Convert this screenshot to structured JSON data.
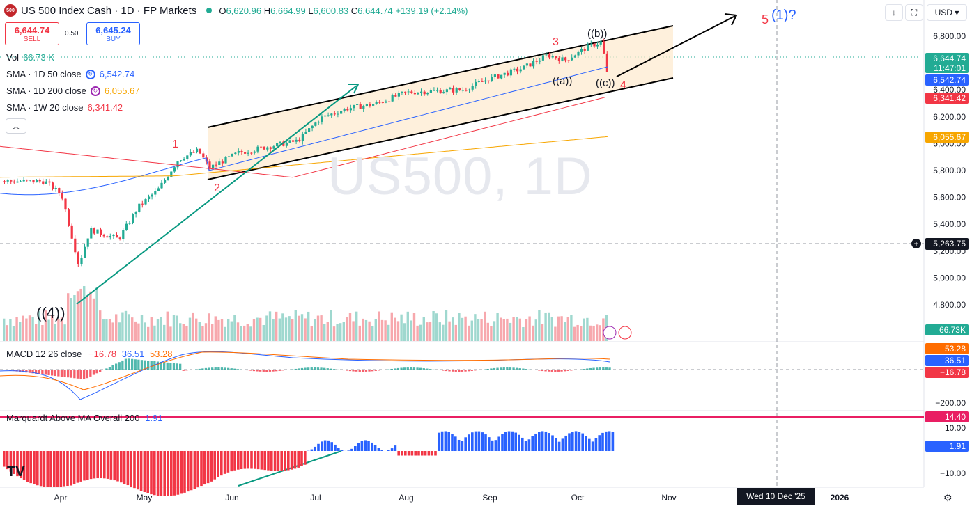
{
  "header": {
    "logo_text": "500",
    "title": "US 500 Index Cash · 1D · FP Markets",
    "ohlc": {
      "o_key": "O",
      "o": "6,620.96",
      "h_key": "H",
      "h": "6,664.99",
      "l_key": "L",
      "l": "6,600.83",
      "c_key": "C",
      "c": "6,644.74",
      "change": "+139.19 (+2.14%)"
    }
  },
  "trade": {
    "sell_value": "6,644.74",
    "sell_label": "SELL",
    "spread": "0.50",
    "buy_value": "6,645.24",
    "buy_label": "BUY"
  },
  "legend": {
    "vol_label": "Vol",
    "vol_value": "66.73 K",
    "sma50_label": "SMA · 1D 50 close",
    "sma50_value": "6,542.74",
    "sma200_label": "SMA · 1D 200 close",
    "sma200_value": "6,055.67",
    "sma1w_label": "SMA · 1W 20 close",
    "sma1w_value": "6,341.42"
  },
  "toolbar": {
    "down_icon": "arrow-down-icon",
    "currency": "USD",
    "currency_caret": "▾"
  },
  "watermark": "US500, 1D",
  "price_axis": {
    "ticks": [
      {
        "label": "6,800.00",
        "value": 6800
      },
      {
        "label": "6,400.00",
        "value": 6400
      },
      {
        "label": "6,200.00",
        "value": 6200
      },
      {
        "label": "6,000.00",
        "value": 6000
      },
      {
        "label": "5,800.00",
        "value": 5800
      },
      {
        "label": "5,600.00",
        "value": 5600
      },
      {
        "label": "5,400.00",
        "value": 5400
      },
      {
        "label": "5,200.00",
        "value": 5200
      },
      {
        "label": "5,000.00",
        "value": 5000
      },
      {
        "label": "4,800.00",
        "value": 4800
      }
    ],
    "labels": {
      "last": "6,644.74",
      "countdown": "11:47:01",
      "sma50": "6,542.74",
      "sma1w": "6,341.42",
      "sma200": "6,055.67",
      "crosshair": "5,263.75",
      "vol": "66.73K"
    },
    "colors": {
      "last": "#22ab94",
      "sma50": "#2962ff",
      "sma1w": "#f23645",
      "sma200": "#f7a600",
      "crosshair": "#131722",
      "vol": "#22ab94"
    }
  },
  "macd": {
    "label": "MACD 12 26 close",
    "hist": "−16.78",
    "macd": "36.51",
    "signal": "53.28",
    "axis_tick": "−200.00",
    "colors": {
      "hist": "#f23645",
      "macd": "#2962ff",
      "signal": "#ff6d00"
    }
  },
  "marquardt": {
    "label": "Marquardt Above MA Overall 200",
    "value": "1.91",
    "axis_ticks": [
      "10.00",
      "−10.00"
    ],
    "upper_label": "14.40"
  },
  "x_axis": {
    "labels": [
      "Apr",
      "May",
      "Jun",
      "Jul",
      "Aug",
      "Sep",
      "Oct",
      "Nov",
      "2026"
    ],
    "crosshair_date": "Wed 10 Dec '25"
  },
  "annotations": {
    "w4": "((4))",
    "w1": "1",
    "w2": "2",
    "w3": "3",
    "wa": "((a))",
    "wb": "((b))",
    "wc": "((c))",
    "w4b": "4",
    "w5": "5",
    "w5b": "(1)?"
  },
  "chart_data": {
    "type": "candlestick",
    "symbol": "US500",
    "timeframe": "1D",
    "x": [
      "2025-03-26",
      "2025-04-01",
      "2025-04-07",
      "2025-04-11",
      "2025-04-21",
      "2025-04-28",
      "2025-05-05",
      "2025-05-12",
      "2025-05-19",
      "2025-05-23",
      "2025-06-02",
      "2025-06-13",
      "2025-06-23",
      "2025-07-01",
      "2025-07-10",
      "2025-07-21",
      "2025-07-31",
      "2025-08-08",
      "2025-08-20",
      "2025-08-29",
      "2025-09-10",
      "2025-09-19",
      "2025-09-25",
      "2025-10-03",
      "2025-10-08",
      "2025-10-10",
      "2025-10-13"
    ],
    "close": [
      5720,
      5620,
      5100,
      5360,
      5290,
      5530,
      5660,
      5880,
      5950,
      5820,
      5930,
      5980,
      6020,
      6190,
      6260,
      6300,
      6380,
      6390,
      6400,
      6480,
      6560,
      6660,
      6620,
      6720,
      6760,
      6510,
      6645
    ],
    "ylim": [
      4650,
      6900
    ],
    "series": [
      {
        "name": "SMA · 1D 50 close",
        "last": 6542.74
      },
      {
        "name": "SMA · 1D 200 close",
        "last": 6055.67
      },
      {
        "name": "SMA · 1W 20 close",
        "last": 6341.42
      }
    ]
  }
}
